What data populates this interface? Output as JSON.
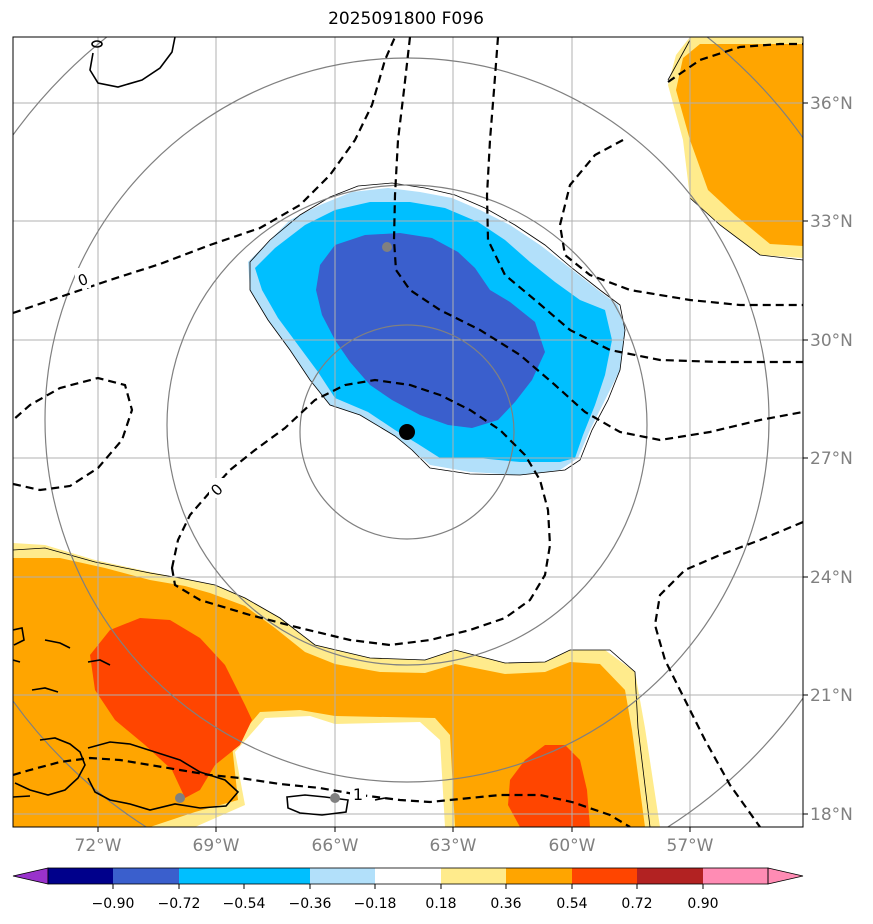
{
  "title": "2025091800 F096",
  "map": {
    "lon_ticks": [
      "72°W",
      "69°W",
      "66°W",
      "63°W",
      "60°W",
      "57°W"
    ],
    "lat_ticks": [
      "36°N",
      "33°N",
      "30°N",
      "27°N",
      "24°N",
      "21°N",
      "18°N"
    ],
    "contour_labels": [
      "0",
      "0",
      "1"
    ],
    "colors": {
      "ocean_bg": "#ffffff",
      "gridline": "#b0b0b0",
      "range_rings": "#808080",
      "tick_label": "#808080",
      "center_marker": "#000000",
      "station_marker": "#808080"
    }
  },
  "colorbar": {
    "labels": [
      "−0.90",
      "−0.72",
      "−0.54",
      "−0.36",
      "−0.18",
      "0.18",
      "0.36",
      "0.54",
      "0.72",
      "0.90"
    ],
    "colors": [
      "#9932cc",
      "#00008b",
      "#3a5fcd",
      "#00bfff",
      "#b2e0fa",
      "#ffffff",
      "#ffeb8c",
      "#ffa500",
      "#ff4500",
      "#b22222",
      "#ff8cb4"
    ],
    "extend": "both"
  }
}
